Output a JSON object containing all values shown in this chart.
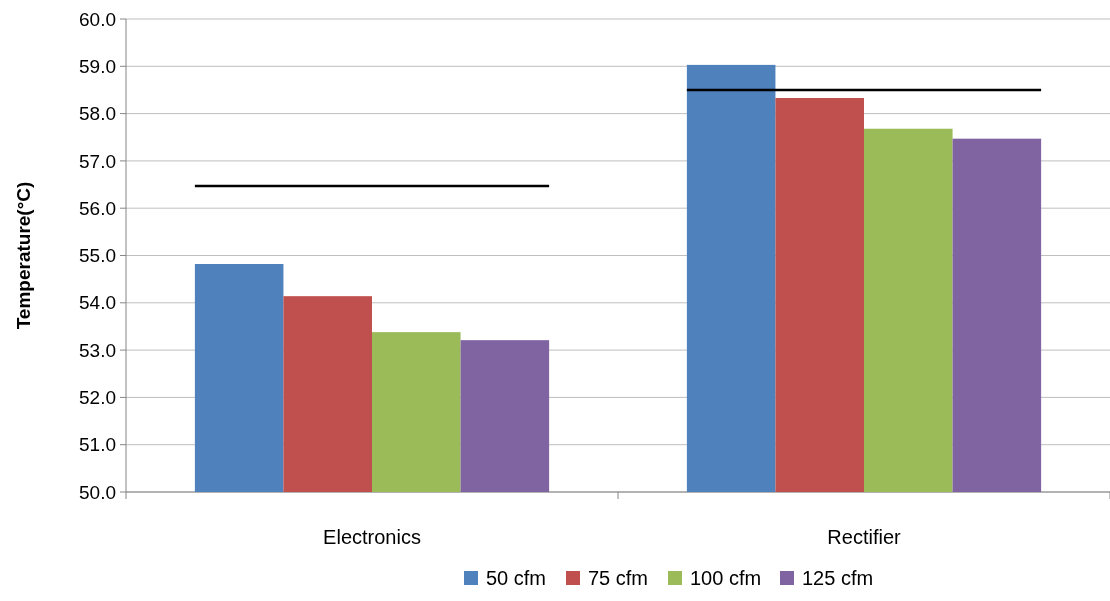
{
  "chart_data": {
    "type": "bar",
    "ylabel": "Temperature(°C)",
    "categories": [
      "Electronics",
      "Rectifier"
    ],
    "series": [
      {
        "name": "50 cfm",
        "color": "#4f81bd",
        "values": [
          54.82,
          59.03
        ]
      },
      {
        "name": "75 cfm",
        "color": "#c0504d",
        "values": [
          54.14,
          58.33
        ]
      },
      {
        "name": "100 cfm",
        "color": "#9bbb59",
        "values": [
          53.38,
          57.68
        ]
      },
      {
        "name": "125 cfm",
        "color": "#8064a2",
        "values": [
          53.21,
          57.47
        ]
      }
    ],
    "ref_lines": [
      {
        "axis": "y",
        "value": 56.47,
        "color": "#000000"
      },
      {
        "axis": "y",
        "value": 58.5,
        "color": "#000000"
      }
    ],
    "ylim": [
      50,
      60
    ],
    "yticks": [
      {
        "value": 50,
        "label": "50.0"
      },
      {
        "value": 51,
        "label": "51.0"
      },
      {
        "value": 52,
        "label": "52.0"
      },
      {
        "value": 53,
        "label": "53.0"
      },
      {
        "value": 54,
        "label": "54.0"
      },
      {
        "value": 55,
        "label": "55.0"
      },
      {
        "value": 56,
        "label": "56.0"
      },
      {
        "value": 57,
        "label": "57.0"
      },
      {
        "value": 58,
        "label": "58.0"
      },
      {
        "value": 59,
        "label": "59.0"
      },
      {
        "value": 60,
        "label": "60.0"
      }
    ],
    "grid": "y",
    "legend": "bottom"
  }
}
